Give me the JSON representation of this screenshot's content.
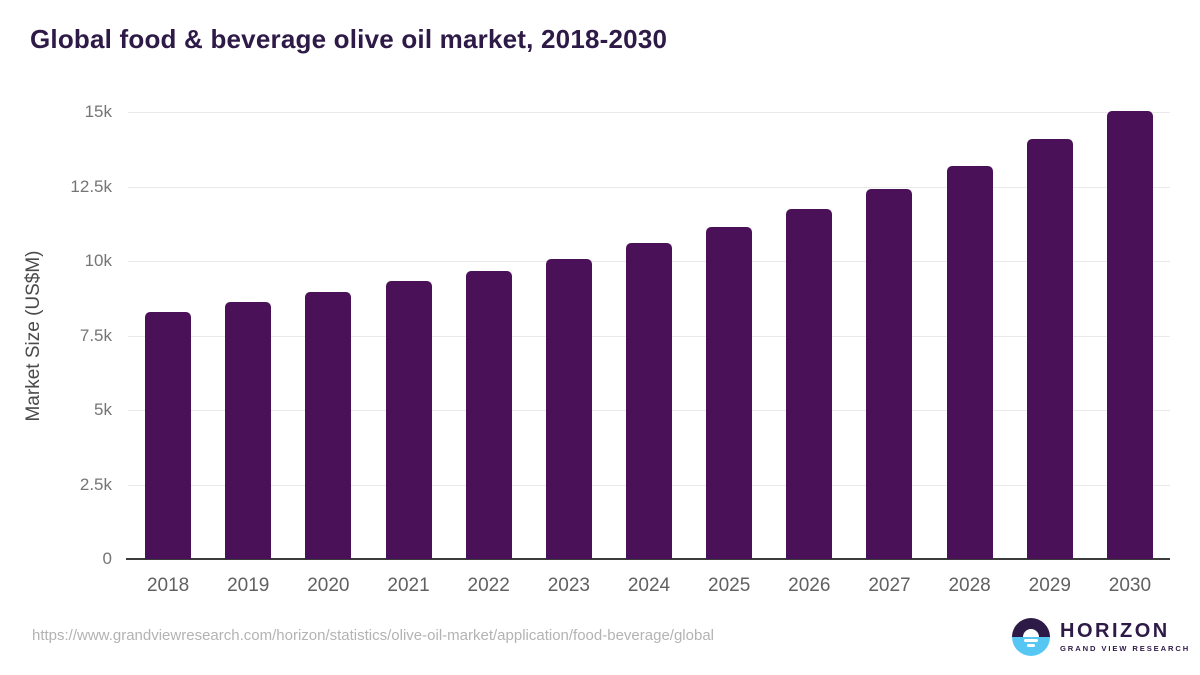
{
  "page": {
    "title": "Global food & beverage olive oil market, 2018-2030",
    "source_url": "https://www.grandviewresearch.com/horizon/statistics/olive-oil-market/application/food-beverage/global"
  },
  "logo": {
    "name": "HORIZON",
    "subtitle": "GRAND VIEW RESEARCH"
  },
  "colors": {
    "bar": "#4a1158",
    "title_text": "#2e1a47",
    "gridline": "#e9e9e9",
    "axis_line": "#3c3c3c",
    "y_tick_label": "#757575",
    "x_tick_label": "#616161",
    "axis_title": "#4a4a4a",
    "source_url": "#b3b3b3",
    "logo_purple": "#2e1a47",
    "logo_blue": "#56c7f2"
  },
  "chart_data": {
    "type": "bar",
    "title": "Global food & beverage olive oil market, 2018-2030",
    "categories": [
      "2018",
      "2019",
      "2020",
      "2021",
      "2022",
      "2023",
      "2024",
      "2025",
      "2026",
      "2027",
      "2028",
      "2029",
      "2030"
    ],
    "values": [
      8280,
      8610,
      8950,
      9320,
      9680,
      10080,
      10610,
      11140,
      11750,
      12430,
      13200,
      14080,
      15050
    ],
    "xlabel": "",
    "ylabel": "Market Size (US$M)",
    "ylim": [
      0,
      15000
    ],
    "yticks": [
      {
        "value": 0,
        "label": "0"
      },
      {
        "value": 2500,
        "label": "2.5k"
      },
      {
        "value": 5000,
        "label": "5k"
      },
      {
        "value": 7500,
        "label": "7.5k"
      },
      {
        "value": 10000,
        "label": "10k"
      },
      {
        "value": 12500,
        "label": "12.5k"
      },
      {
        "value": 15000,
        "label": "15k"
      }
    ],
    "grid": true,
    "legend": false,
    "bar_color": "#4a1158"
  }
}
